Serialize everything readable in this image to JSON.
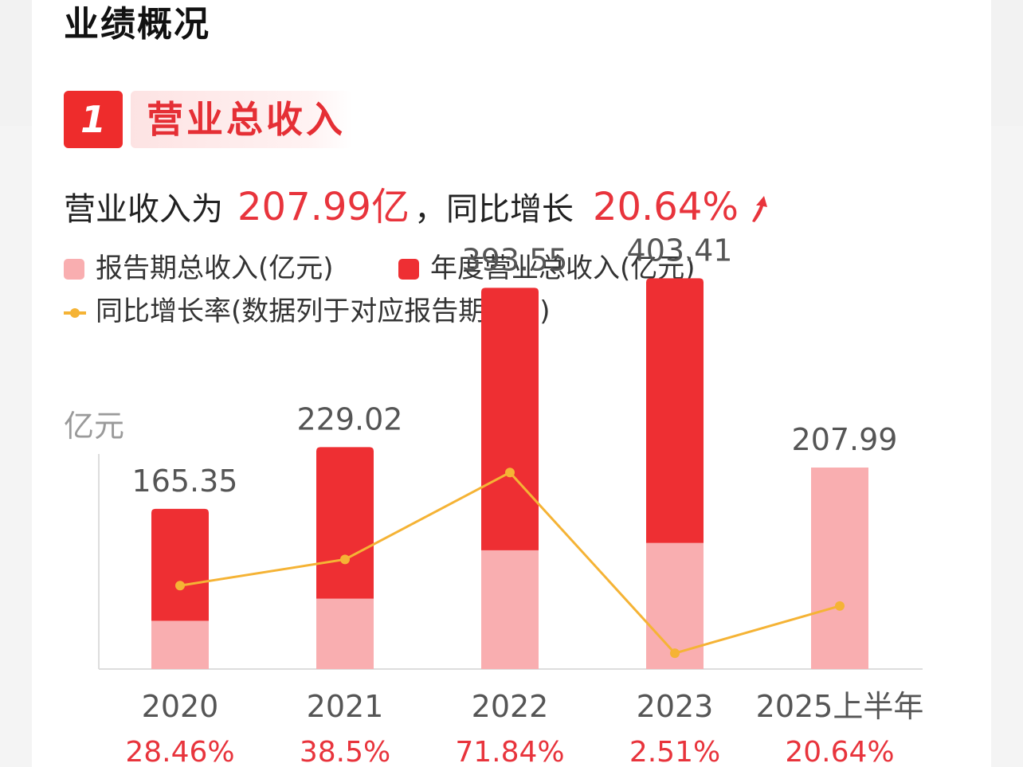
{
  "header": {
    "title": "业绩概况"
  },
  "badge": {
    "number": "1",
    "label": "营业总收入"
  },
  "summary": {
    "prefix": "营业收入为",
    "revenue": "207.99亿",
    "middle": "，同比增长",
    "growth": "20.64%"
  },
  "legend": {
    "period_label": "报告期总收入(亿元)",
    "annual_label": "年度营业总收入(亿元)",
    "growth_label": "同比增长率(数据列于对应报告期下方)"
  },
  "colors": {
    "annual": "#ee2f33",
    "period": "#f9aeb0",
    "growth_line": "#f5b335",
    "highlight": "#e8343c"
  },
  "chart_data": {
    "type": "bar",
    "ylabel": "亿元",
    "categories": [
      "2020",
      "2021",
      "2022",
      "2023",
      "2025上半年"
    ],
    "series": [
      {
        "name": "年度营业总收入(亿元)",
        "values": [
          165.35,
          229.02,
          393.55,
          403.41,
          null
        ]
      },
      {
        "name": "报告期总收入(亿元)",
        "values": [
          49.8,
          72.7,
          122.6,
          130.2,
          207.99
        ]
      }
    ],
    "value_labels": [
      "165.35",
      "229.02",
      "393.55",
      "403.41",
      "207.99"
    ],
    "growth": {
      "name": "同比增长率(数据列于对应报告期下方)",
      "values": [
        28.46,
        38.5,
        71.84,
        2.51,
        20.64
      ],
      "labels": [
        "28.46%",
        "38.5%",
        "71.84%",
        "2.51%",
        "20.64%"
      ]
    },
    "ylim": [
      0,
      490
    ],
    "growth_ylim": [
      -0.5,
      82
    ],
    "grid": false,
    "legend_position": "top-left"
  }
}
